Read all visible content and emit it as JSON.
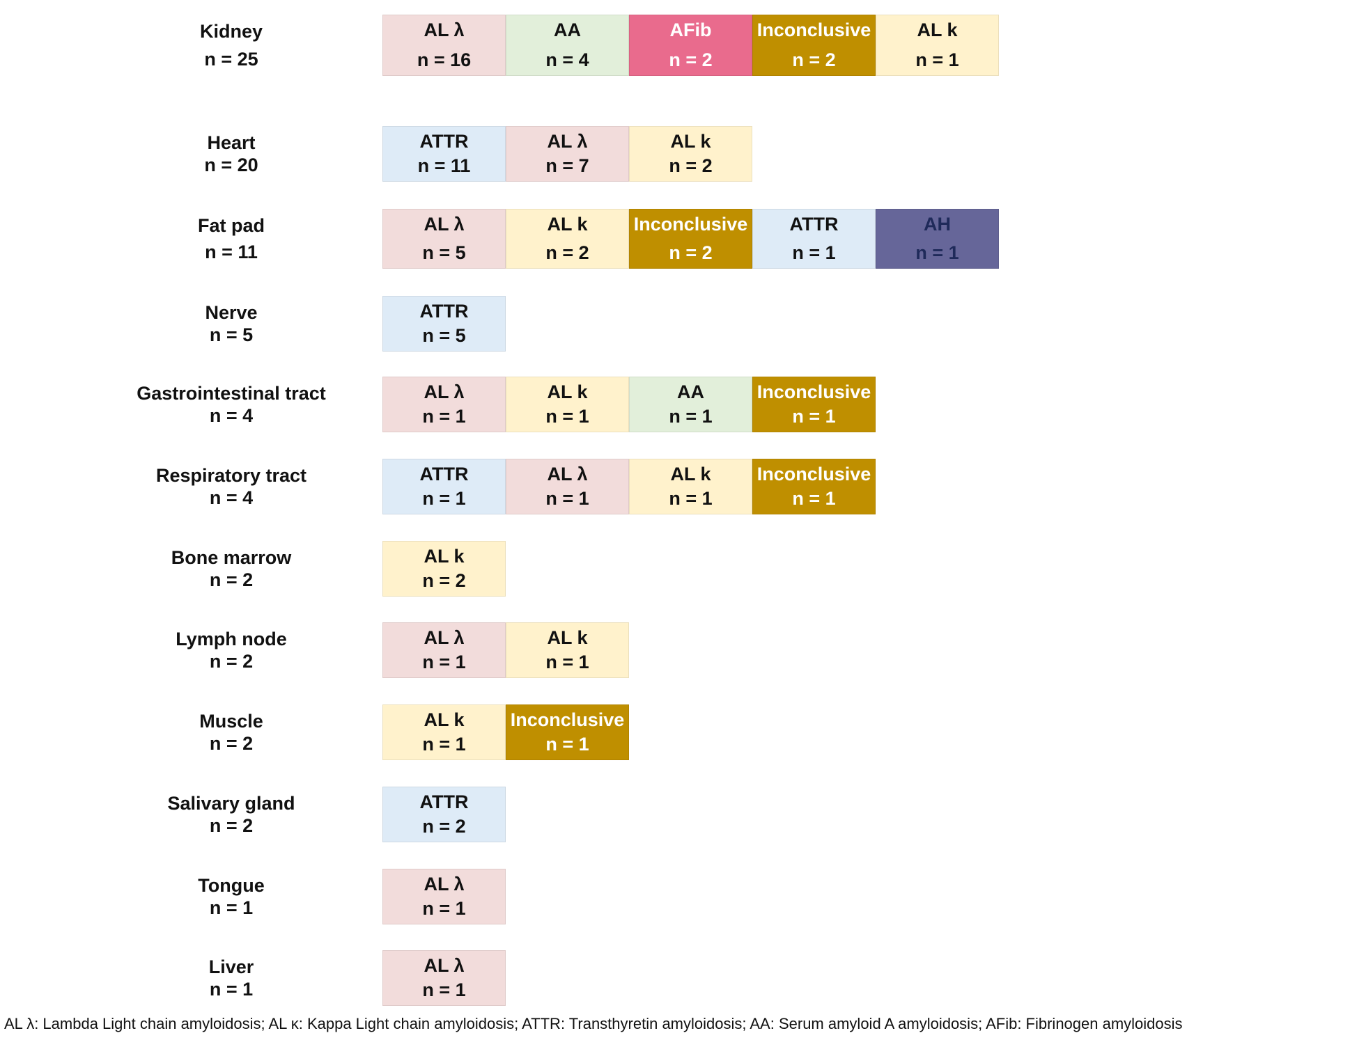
{
  "rows": [
    {
      "organ": "Kidney",
      "n": "n = 25",
      "cells": [
        {
          "type": "AL λ",
          "n": "n = 16",
          "color": "#f2dcdb"
        },
        {
          "type": "AA",
          "n": "n = 4",
          "color": "#e2efda"
        },
        {
          "type": "AFib",
          "n": "n = 2",
          "color": "#e96b8d"
        },
        {
          "type": "Inconclusive",
          "n": "n = 2",
          "color": "#bf8f00"
        },
        {
          "type": "AL k",
          "n": "n = 1",
          "color": "#fff2cc"
        }
      ]
    },
    {
      "organ": "Heart",
      "n": "n = 20",
      "cells": [
        {
          "type": "ATTR",
          "n": "n = 11",
          "color": "#deebf7"
        },
        {
          "type": "AL λ",
          "n": "n = 7",
          "color": "#f2dcdb"
        },
        {
          "type": "AL k",
          "n": "n = 2",
          "color": "#fff2cc"
        }
      ]
    },
    {
      "organ": "Fat pad",
      "n": "n = 11",
      "cells": [
        {
          "type": "AL λ",
          "n": "n = 5",
          "color": "#f2dcdb"
        },
        {
          "type": "AL k",
          "n": "n = 2",
          "color": "#fff2cc"
        },
        {
          "type": "Inconclusive",
          "n": "n = 2",
          "color": "#bf8f00"
        },
        {
          "type": "ATTR",
          "n": "n = 1",
          "color": "#deebf7"
        },
        {
          "type": "AH",
          "n": "n = 1",
          "color": "#666699"
        }
      ]
    },
    {
      "organ": "Nerve",
      "n": "n = 5",
      "cells": [
        {
          "type": "ATTR",
          "n": "n = 5",
          "color": "#deebf7"
        }
      ]
    },
    {
      "organ": "Gastrointestinal tract",
      "n": "n = 4",
      "cells": [
        {
          "type": "AL λ",
          "n": "n = 1",
          "color": "#f2dcdb"
        },
        {
          "type": "AL k",
          "n": "n = 1",
          "color": "#fff2cc"
        },
        {
          "type": "AA",
          "n": "n = 1",
          "color": "#e2efda"
        },
        {
          "type": "Inconclusive",
          "n": "n = 1",
          "color": "#bf8f00"
        }
      ]
    },
    {
      "organ": "Respiratory tract",
      "n": "n = 4",
      "cells": [
        {
          "type": "ATTR",
          "n": "n = 1",
          "color": "#deebf7"
        },
        {
          "type": "AL λ",
          "n": "n = 1",
          "color": "#f2dcdb"
        },
        {
          "type": "AL k",
          "n": "n = 1",
          "color": "#fff2cc"
        },
        {
          "type": "Inconclusive",
          "n": "n = 1",
          "color": "#bf8f00"
        }
      ]
    },
    {
      "organ": "Bone marrow",
      "n": "n = 2",
      "cells": [
        {
          "type": "AL k",
          "n": "n = 2",
          "color": "#fff2cc"
        }
      ]
    },
    {
      "organ": "Lymph node",
      "n": "n = 2",
      "cells": [
        {
          "type": "AL λ",
          "n": "n = 1",
          "color": "#f2dcdb"
        },
        {
          "type": "AL k",
          "n": "n = 1",
          "color": "#fff2cc"
        }
      ]
    },
    {
      "organ": "Muscle",
      "n": "n = 2",
      "cells": [
        {
          "type": "AL k",
          "n": "n = 1",
          "color": "#fff2cc"
        },
        {
          "type": "Inconclusive",
          "n": "n = 1",
          "color": "#bf8f00"
        }
      ]
    },
    {
      "organ": "Salivary gland",
      "n": "n = 2",
      "cells": [
        {
          "type": "ATTR",
          "n": "n = 2",
          "color": "#deebf7"
        }
      ]
    },
    {
      "organ": "Tongue",
      "n": "n = 1",
      "cells": [
        {
          "type": "AL λ",
          "n": "n = 1",
          "color": "#f2dcdb"
        }
      ]
    },
    {
      "organ": "Liver",
      "n": "n = 1",
      "cells": [
        {
          "type": "AL λ",
          "n": "n = 1",
          "color": "#f2dcdb"
        }
      ]
    }
  ],
  "footnote": "AL λ: Lambda Light chain amyloidosis; AL κ: Kappa Light chain amyloidosis; ATTR: Transthyretin amyloidosis; AA: Serum amyloid A amyloidosis; AFib: Fibrinogen amyloidosis"
}
